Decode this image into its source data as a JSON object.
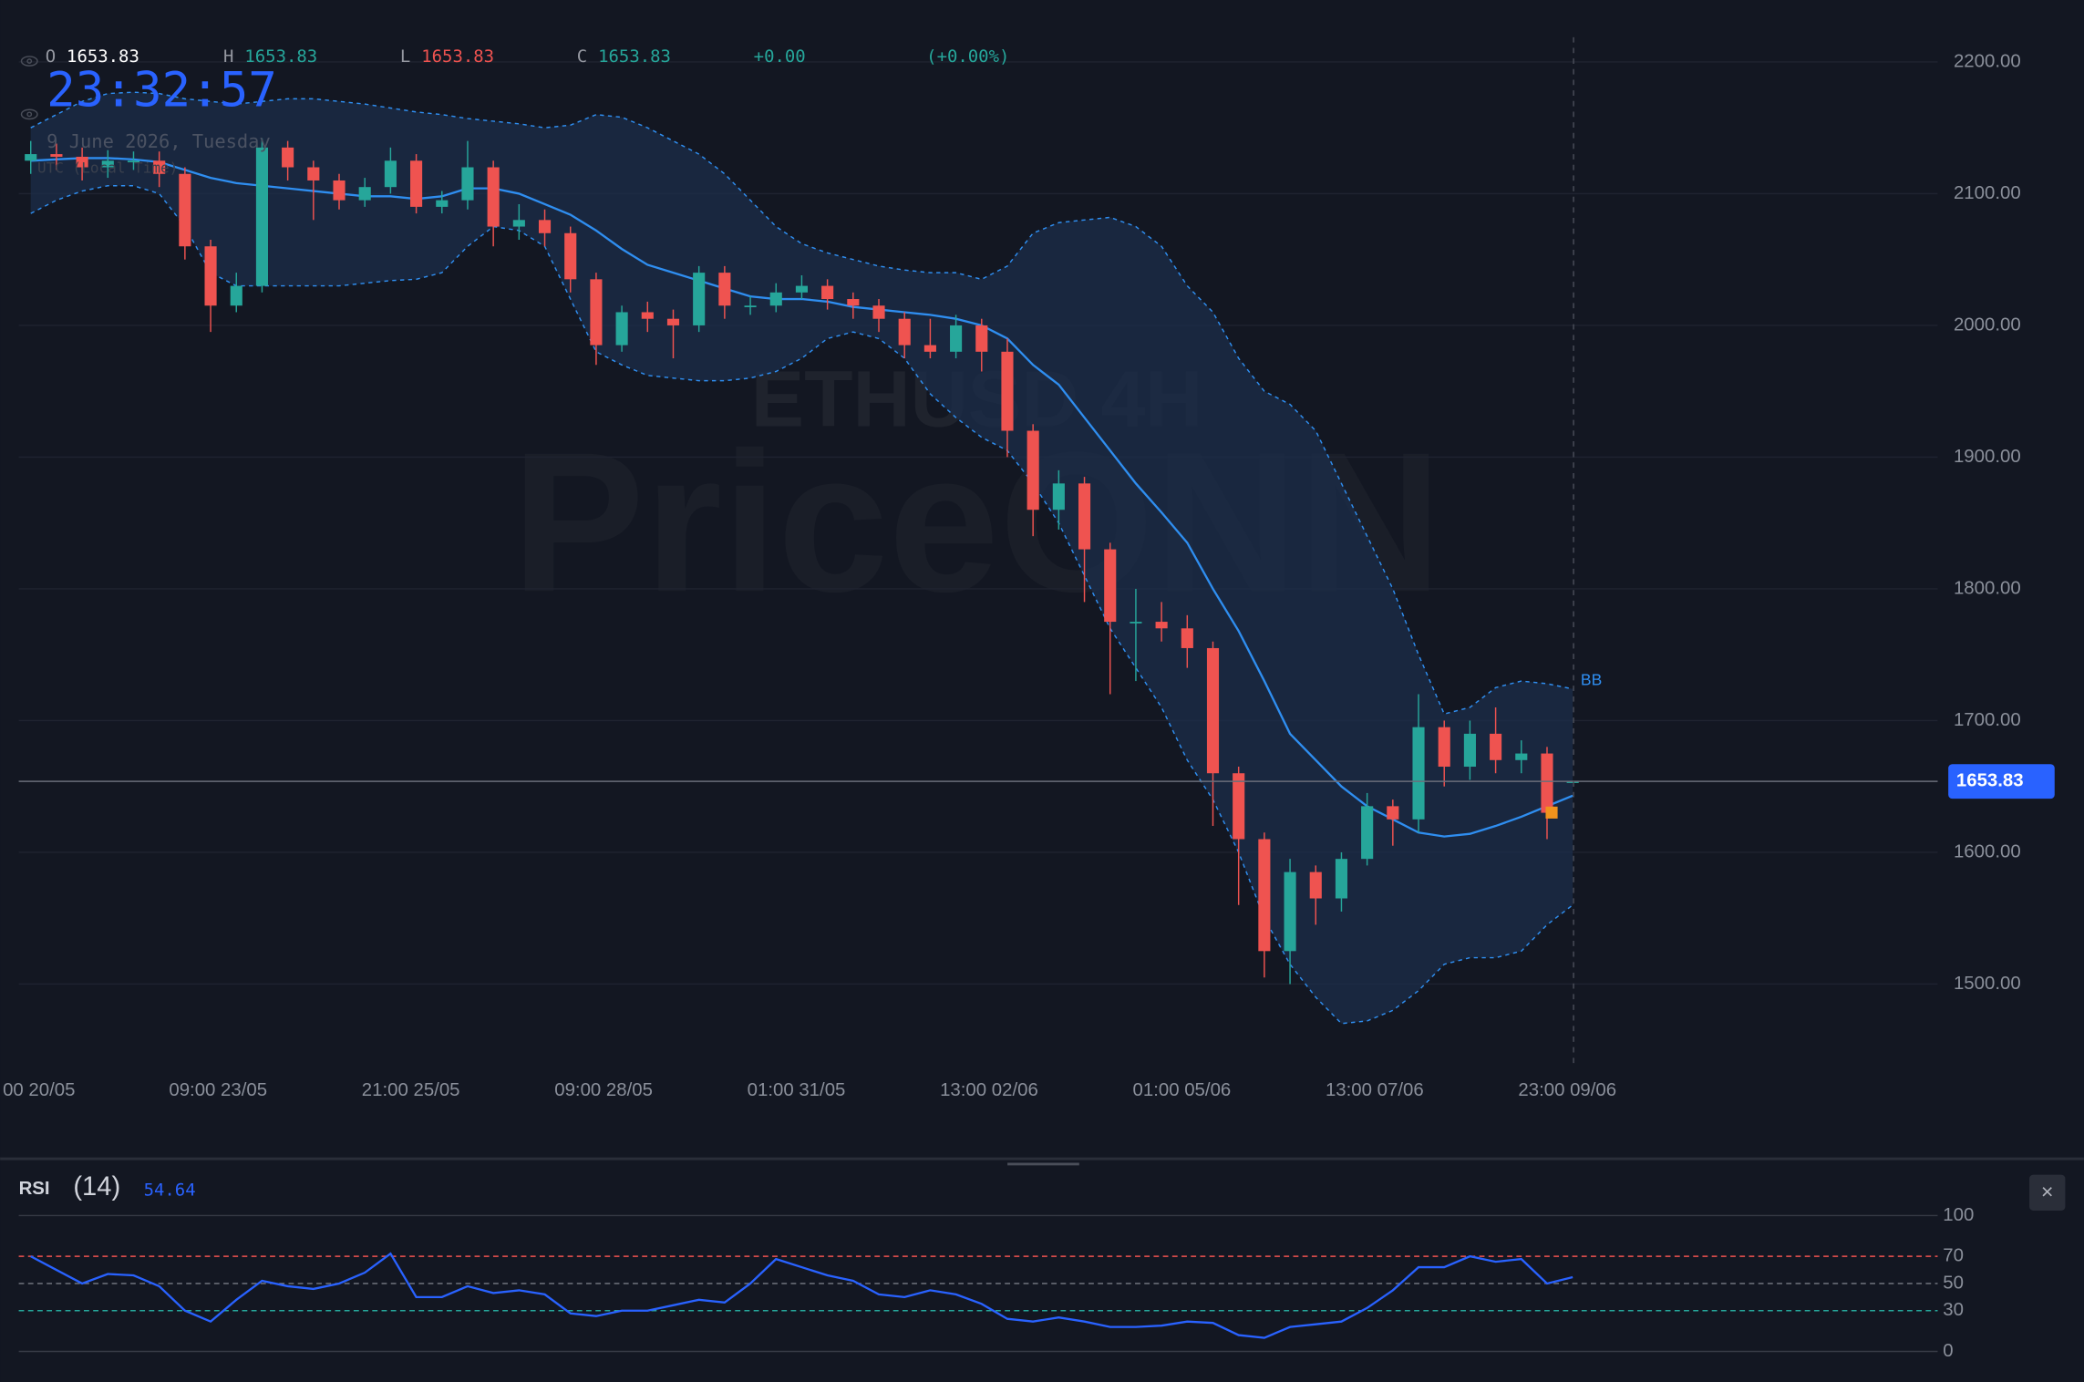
{
  "header": {
    "clock": "23:32:57",
    "date": "9 June 2026, Tuesday",
    "timezone": "UTC (Local Time)"
  },
  "watermark": {
    "symbol": "ETHUSD 4H",
    "brand": "PriceONN"
  },
  "close_button": "×",
  "chart_data": [
    {
      "type": "candlestick",
      "up_color": "#26a69a",
      "down_color": "#ef5350",
      "ohlc_labels": [
        "O",
        "H",
        "L",
        "C"
      ],
      "change": "+0.00",
      "change_percent": "(+0.00%)",
      "open": [
        2125,
        2130,
        2128,
        2120,
        2125,
        2125,
        2115,
        2060,
        2015,
        2030,
        2135,
        2120,
        2110,
        2095,
        2105,
        2125,
        2090,
        2095,
        2120,
        2075,
        2080,
        2070,
        2035,
        1985,
        2010,
        2005,
        2000,
        2040,
        2015,
        2015,
        2025,
        2030,
        2020,
        2015,
        2005,
        1985,
        1980,
        2000,
        1980,
        1920,
        1860,
        1880,
        1830,
        1775,
        1775,
        1770,
        1755,
        1660,
        1610,
        1525,
        1585,
        1565,
        1595,
        1635,
        1625,
        1695,
        1665,
        1690,
        1670,
        1675,
        1653.83
      ],
      "high": [
        2140,
        2138,
        2135,
        2133,
        2132,
        2132,
        2120,
        2065,
        2040,
        2142,
        2140,
        2125,
        2115,
        2112,
        2135,
        2130,
        2102,
        2140,
        2125,
        2092,
        2088,
        2075,
        2040,
        2015,
        2018,
        2012,
        2045,
        2045,
        2022,
        2032,
        2038,
        2035,
        2025,
        2020,
        2010,
        2005,
        2008,
        2005,
        1990,
        1925,
        1890,
        1885,
        1835,
        1800,
        1790,
        1780,
        1760,
        1665,
        1615,
        1595,
        1590,
        1600,
        1645,
        1640,
        1720,
        1700,
        1700,
        1710,
        1685,
        1680,
        1653.83
      ],
      "low": [
        2115,
        2118,
        2110,
        2112,
        2118,
        2105,
        2050,
        1995,
        2010,
        2025,
        2110,
        2080,
        2088,
        2090,
        2100,
        2085,
        2085,
        2088,
        2060,
        2065,
        2060,
        2025,
        1970,
        1980,
        1995,
        1975,
        1995,
        2005,
        2008,
        2010,
        2020,
        2012,
        2005,
        1995,
        1975,
        1975,
        1975,
        1965,
        1900,
        1840,
        1845,
        1790,
        1720,
        1730,
        1760,
        1740,
        1620,
        1560,
        1505,
        1500,
        1545,
        1555,
        1590,
        1605,
        1615,
        1650,
        1655,
        1660,
        1660,
        1610,
        1653.83
      ],
      "close": [
        2130,
        2128,
        2120,
        2125,
        2125,
        2115,
        2060,
        2015,
        2030,
        2135,
        2120,
        2110,
        2095,
        2105,
        2125,
        2090,
        2095,
        2120,
        2075,
        2080,
        2070,
        2035,
        1985,
        2010,
        2005,
        2000,
        2040,
        2015,
        2015,
        2025,
        2030,
        2020,
        2015,
        2005,
        1985,
        1980,
        2000,
        1980,
        1920,
        1860,
        1880,
        1830,
        1775,
        1775,
        1770,
        1755,
        1660,
        1610,
        1525,
        1585,
        1565,
        1595,
        1635,
        1625,
        1695,
        1665,
        1690,
        1670,
        1675,
        1630,
        1653.83
      ],
      "xlim": [
        -1.19,
        74.2
      ],
      "xticks": [
        {
          "value": -0.21,
          "label": "00 20/05"
        },
        {
          "value": 7.29,
          "label": "09:00 23/05"
        },
        {
          "value": 14.79,
          "label": "21:00 25/05"
        },
        {
          "value": 22.29,
          "label": "09:00 28/05"
        },
        {
          "value": 29.79,
          "label": "01:00 31/05"
        },
        {
          "value": 37.29,
          "label": "13:00 02/06"
        },
        {
          "value": 44.79,
          "label": "01:00 05/06"
        },
        {
          "value": 52.29,
          "label": "13:00 07/06"
        },
        {
          "value": 59.79,
          "label": "23:00 09/06"
        }
      ],
      "ylim": [
        1440,
        2247
      ],
      "yticks": [
        {
          "value": 1500,
          "label": "1500.00"
        },
        {
          "value": 1600,
          "label": "1600.00"
        },
        {
          "value": 1700,
          "label": "1700.00"
        },
        {
          "value": 1800,
          "label": "1800.00"
        },
        {
          "value": 1900,
          "label": "1900.00"
        },
        {
          "value": 2000,
          "label": "2000.00"
        },
        {
          "value": 2100,
          "label": "2100.00"
        },
        {
          "value": 2200,
          "label": "2200.00"
        }
      ],
      "grid": true,
      "bands": {
        "name": "BB",
        "color": "#2f8ef0",
        "upper": [
          2150,
          2160,
          2170,
          2176,
          2177,
          2176,
          2172,
          2170,
          2168,
          2170,
          2172,
          2172,
          2170,
          2168,
          2165,
          2162,
          2160,
          2157,
          2155,
          2153,
          2150,
          2152,
          2160,
          2158,
          2150,
          2140,
          2130,
          2115,
          2095,
          2075,
          2062,
          2055,
          2050,
          2045,
          2042,
          2040,
          2040,
          2035,
          2045,
          2070,
          2078,
          2080,
          2082,
          2075,
          2060,
          2030,
          2010,
          1975,
          1950,
          1940,
          1920,
          1880,
          1840,
          1800,
          1750,
          1705,
          1710,
          1725,
          1730,
          1728,
          1724
        ],
        "middle": [
          2125,
          2126,
          2127,
          2127,
          2126,
          2124,
          2118,
          2112,
          2108,
          2106,
          2104,
          2102,
          2100,
          2098,
          2098,
          2096,
          2098,
          2104,
          2104,
          2100,
          2092,
          2084,
          2072,
          2058,
          2046,
          2040,
          2034,
          2028,
          2022,
          2020,
          2020,
          2018,
          2014,
          2012,
          2010,
          2008,
          2005,
          2000,
          1990,
          1970,
          1955,
          1930,
          1905,
          1880,
          1858,
          1835,
          1800,
          1768,
          1730,
          1690,
          1670,
          1650,
          1635,
          1625,
          1615,
          1612,
          1614,
          1620,
          1627,
          1635,
          1643
        ],
        "lower": [
          2085,
          2095,
          2102,
          2106,
          2106,
          2100,
          2075,
          2040,
          2030,
          2030,
          2030,
          2030,
          2030,
          2032,
          2034,
          2035,
          2040,
          2060,
          2075,
          2072,
          2060,
          2020,
          1980,
          1970,
          1962,
          1960,
          1958,
          1958,
          1960,
          1965,
          1975,
          1990,
          1995,
          1990,
          1975,
          1948,
          1930,
          1915,
          1905,
          1880,
          1850,
          1810,
          1770,
          1740,
          1710,
          1670,
          1640,
          1600,
          1550,
          1515,
          1490,
          1470,
          1472,
          1480,
          1495,
          1515,
          1520,
          1520,
          1525,
          1545,
          1560
        ]
      }
    },
    {
      "type": "line",
      "title": "RSI",
      "subtitle": "(14)",
      "color": "#2962ff",
      "values": [
        70,
        60,
        50,
        57,
        56,
        48,
        30,
        22,
        38,
        52,
        48,
        46,
        50,
        58,
        72,
        40,
        40,
        48,
        43,
        45,
        42,
        28,
        26,
        30,
        30,
        34,
        38,
        36,
        50,
        68,
        62,
        56,
        52,
        42,
        40,
        45,
        42,
        35,
        24,
        22,
        25,
        22,
        18,
        18,
        19,
        22,
        21,
        12,
        10,
        18,
        20,
        22,
        32,
        45,
        62,
        62,
        70,
        66,
        68,
        50,
        54.64
      ],
      "xlim": [
        -1.19,
        74.2
      ],
      "ylim": [
        -22.5,
        134
      ],
      "yticks": [
        0,
        30,
        50,
        70,
        100
      ],
      "grid_colors": [
        "#363a45",
        "#26a69a",
        "#787b86",
        "#ef5350",
        "#363a45"
      ]
    }
  ]
}
